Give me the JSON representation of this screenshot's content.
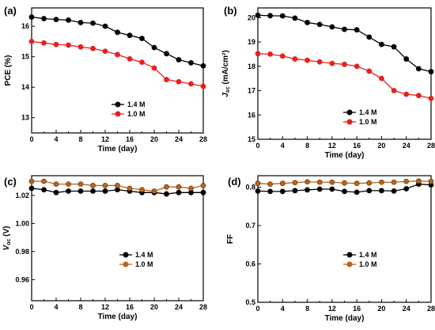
{
  "chart_data": [
    {
      "type": "line",
      "panel_label": "(a)",
      "xlabel": "Time (day)",
      "ylabel": "PCE (%)",
      "xlim": [
        0,
        28
      ],
      "ylim": [
        12.5,
        16.6
      ],
      "xticks": [
        0,
        4,
        8,
        12,
        16,
        20,
        24,
        28
      ],
      "yticks": [
        13,
        14,
        15,
        16
      ],
      "legend_position": "lower-left",
      "x": [
        0,
        2,
        4,
        6,
        8,
        10,
        12,
        14,
        16,
        18,
        20,
        22,
        24,
        26,
        28
      ],
      "series": [
        {
          "name": "1.4 M",
          "color": "#000000",
          "values": [
            16.3,
            16.25,
            16.22,
            16.2,
            16.12,
            16.1,
            16.0,
            15.8,
            15.7,
            15.6,
            15.3,
            15.1,
            14.9,
            14.8,
            14.7
          ]
        },
        {
          "name": "1.0 M",
          "color": "#e8201e",
          "values": [
            15.5,
            15.45,
            15.4,
            15.38,
            15.32,
            15.27,
            15.18,
            15.07,
            14.93,
            14.82,
            14.63,
            14.25,
            14.18,
            14.11,
            14.03
          ]
        }
      ]
    },
    {
      "type": "line",
      "panel_label": "(b)",
      "xlabel": "Time (day)",
      "ylabel_main": "J",
      "ylabel_sub": "sc",
      "ylabel_unit": " (mA/cm²)",
      "xlim": [
        0,
        28
      ],
      "ylim": [
        15,
        20.4
      ],
      "xticks": [
        0,
        4,
        8,
        12,
        16,
        20,
        24,
        28
      ],
      "yticks": [
        15,
        16,
        17,
        18,
        19,
        20
      ],
      "legend_position": "lower-left",
      "x": [
        0,
        2,
        4,
        6,
        8,
        10,
        12,
        14,
        16,
        18,
        20,
        22,
        24,
        26,
        28
      ],
      "series": [
        {
          "name": "1.4 M",
          "color": "#000000",
          "values": [
            20.1,
            20.08,
            20.07,
            19.98,
            19.8,
            19.72,
            19.62,
            19.52,
            19.5,
            19.2,
            18.9,
            18.8,
            18.3,
            17.9,
            17.78
          ]
        },
        {
          "name": "1.0 M",
          "color": "#e8201e",
          "values": [
            18.52,
            18.5,
            18.42,
            18.3,
            18.25,
            18.18,
            18.12,
            18.08,
            18.0,
            17.8,
            17.5,
            17.0,
            16.85,
            16.8,
            16.68
          ]
        }
      ]
    },
    {
      "type": "line",
      "panel_label": "(c)",
      "xlabel": "Time (day)",
      "ylabel_main": "V",
      "ylabel_sub": "oc",
      "ylabel_unit": " (V)",
      "xlim": [
        0,
        28
      ],
      "ylim": [
        0.945,
        1.034
      ],
      "xticks": [
        0,
        4,
        8,
        12,
        16,
        20,
        24,
        28
      ],
      "yticks": [
        0.96,
        0.98,
        1.0,
        1.02
      ],
      "yticks_format": 2,
      "legend_position": "center-right",
      "x": [
        0,
        2,
        4,
        6,
        8,
        10,
        12,
        14,
        16,
        18,
        20,
        22,
        24,
        26,
        28
      ],
      "series": [
        {
          "name": "1.4 M",
          "color": "#000000",
          "values": [
            1.025,
            1.024,
            1.022,
            1.023,
            1.023,
            1.023,
            1.023,
            1.024,
            1.023,
            1.022,
            1.022,
            1.021,
            1.022,
            1.022,
            1.022
          ]
        },
        {
          "name": "1.0 M",
          "color": "#b5651d",
          "values": [
            1.03,
            1.03,
            1.028,
            1.028,
            1.028,
            1.027,
            1.027,
            1.027,
            1.025,
            1.024,
            1.023,
            1.026,
            1.026,
            1.025,
            1.027
          ]
        }
      ]
    },
    {
      "type": "line",
      "panel_label": "(d)",
      "xlabel": "Time (day)",
      "ylabel": "FF",
      "xlim": [
        0,
        28
      ],
      "ylim": [
        0.5,
        0.83
      ],
      "xticks": [
        0,
        4,
        8,
        12,
        16,
        20,
        24,
        28
      ],
      "yticks": [
        0.5,
        0.6,
        0.7,
        0.8
      ],
      "yticks_format": 1,
      "legend_position": "center-right",
      "x": [
        0,
        2,
        4,
        6,
        8,
        10,
        12,
        14,
        16,
        18,
        20,
        22,
        24,
        26,
        28
      ],
      "series": [
        {
          "name": "1.4 M",
          "color": "#000000",
          "values": [
            0.79,
            0.789,
            0.789,
            0.791,
            0.793,
            0.795,
            0.795,
            0.789,
            0.787,
            0.791,
            0.791,
            0.79,
            0.796,
            0.808,
            0.806
          ]
        },
        {
          "name": "1.0 M",
          "color": "#b5651d",
          "values": [
            0.81,
            0.808,
            0.81,
            0.812,
            0.814,
            0.813,
            0.813,
            0.811,
            0.81,
            0.811,
            0.813,
            0.813,
            0.815,
            0.816,
            0.815
          ]
        }
      ]
    }
  ]
}
